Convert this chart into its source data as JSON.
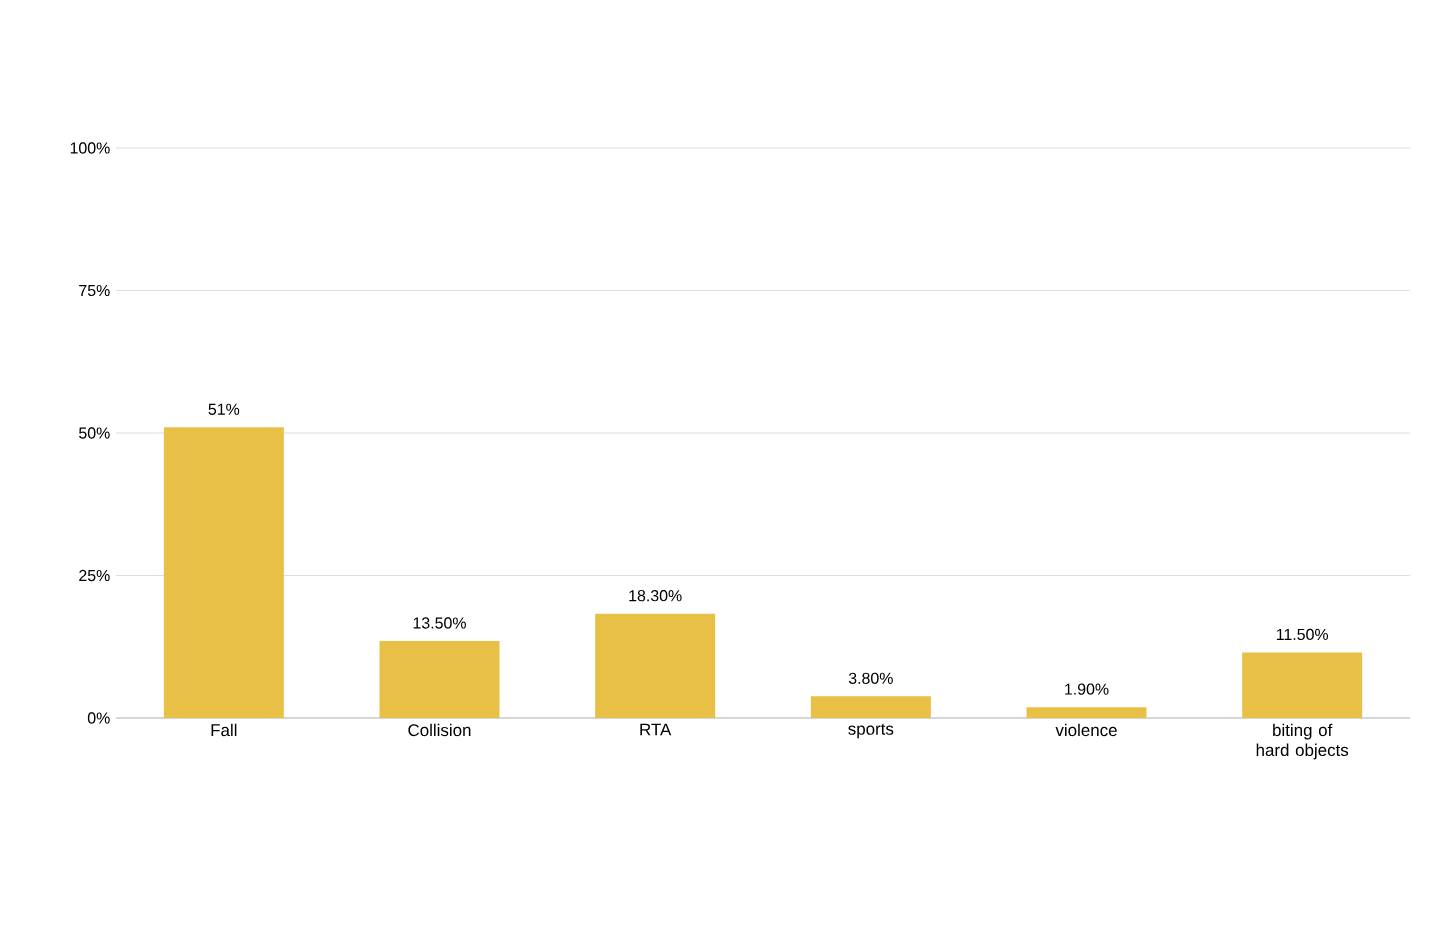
{
  "chart_data": {
    "type": "bar",
    "categories": [
      "Fall",
      "Collision",
      "RTA",
      "sports",
      "violence",
      "biting of hard objects"
    ],
    "values": [
      51,
      13.5,
      18.3,
      3.8,
      1.9,
      11.5
    ],
    "value_labels": [
      "51%",
      "13.50%",
      "18.30%",
      "3.80%",
      "1.90%",
      "11.50%"
    ],
    "color": "#e9c046",
    "ylim": [
      0,
      100
    ],
    "yticks": [
      {
        "value": 0,
        "label": "0%"
      },
      {
        "value": 25,
        "label": "25%"
      },
      {
        "value": 50,
        "label": "50%"
      },
      {
        "value": 75,
        "label": "75%"
      },
      {
        "value": 100,
        "label": "100%"
      }
    ],
    "grid": "y"
  }
}
